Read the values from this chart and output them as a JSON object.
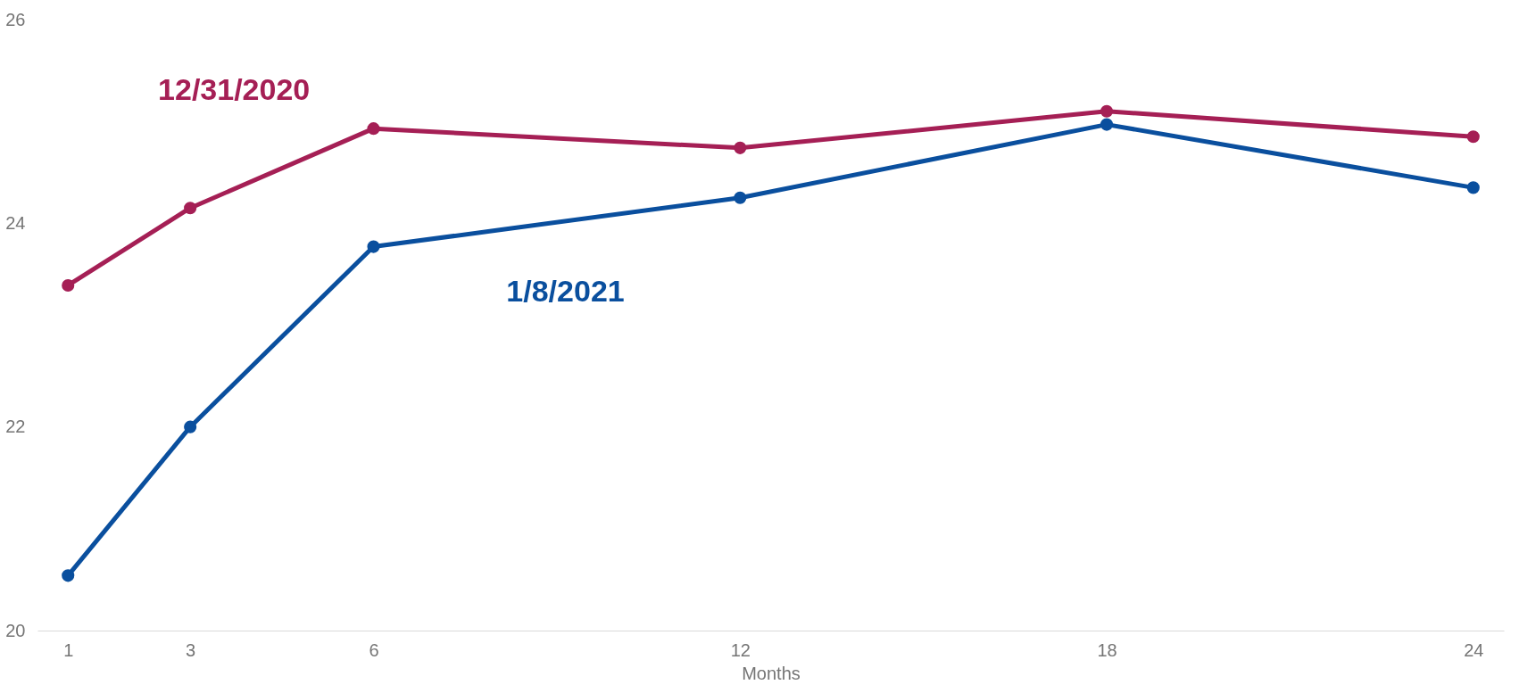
{
  "chart_data": {
    "type": "line",
    "xlabel": "Months",
    "x": [
      1,
      3,
      6,
      12,
      18,
      24
    ],
    "series": [
      {
        "name": "12/31/2020",
        "color": "#a51f55",
        "values": [
          23.39,
          24.15,
          24.93,
          24.74,
          25.1,
          24.85
        ]
      },
      {
        "name": "1/8/2021",
        "color": "#0a4f9e",
        "values": [
          20.54,
          22.0,
          23.77,
          24.25,
          24.97,
          24.35
        ]
      }
    ],
    "xlim": [
      0.5,
      24.5
    ],
    "xticks": [
      1,
      3,
      6,
      12,
      18,
      24
    ],
    "ylim": [
      20,
      26
    ],
    "yticks": [
      20,
      22,
      24,
      26
    ],
    "grid": false,
    "legend": false,
    "marker": "circle",
    "line_style": "solid"
  }
}
